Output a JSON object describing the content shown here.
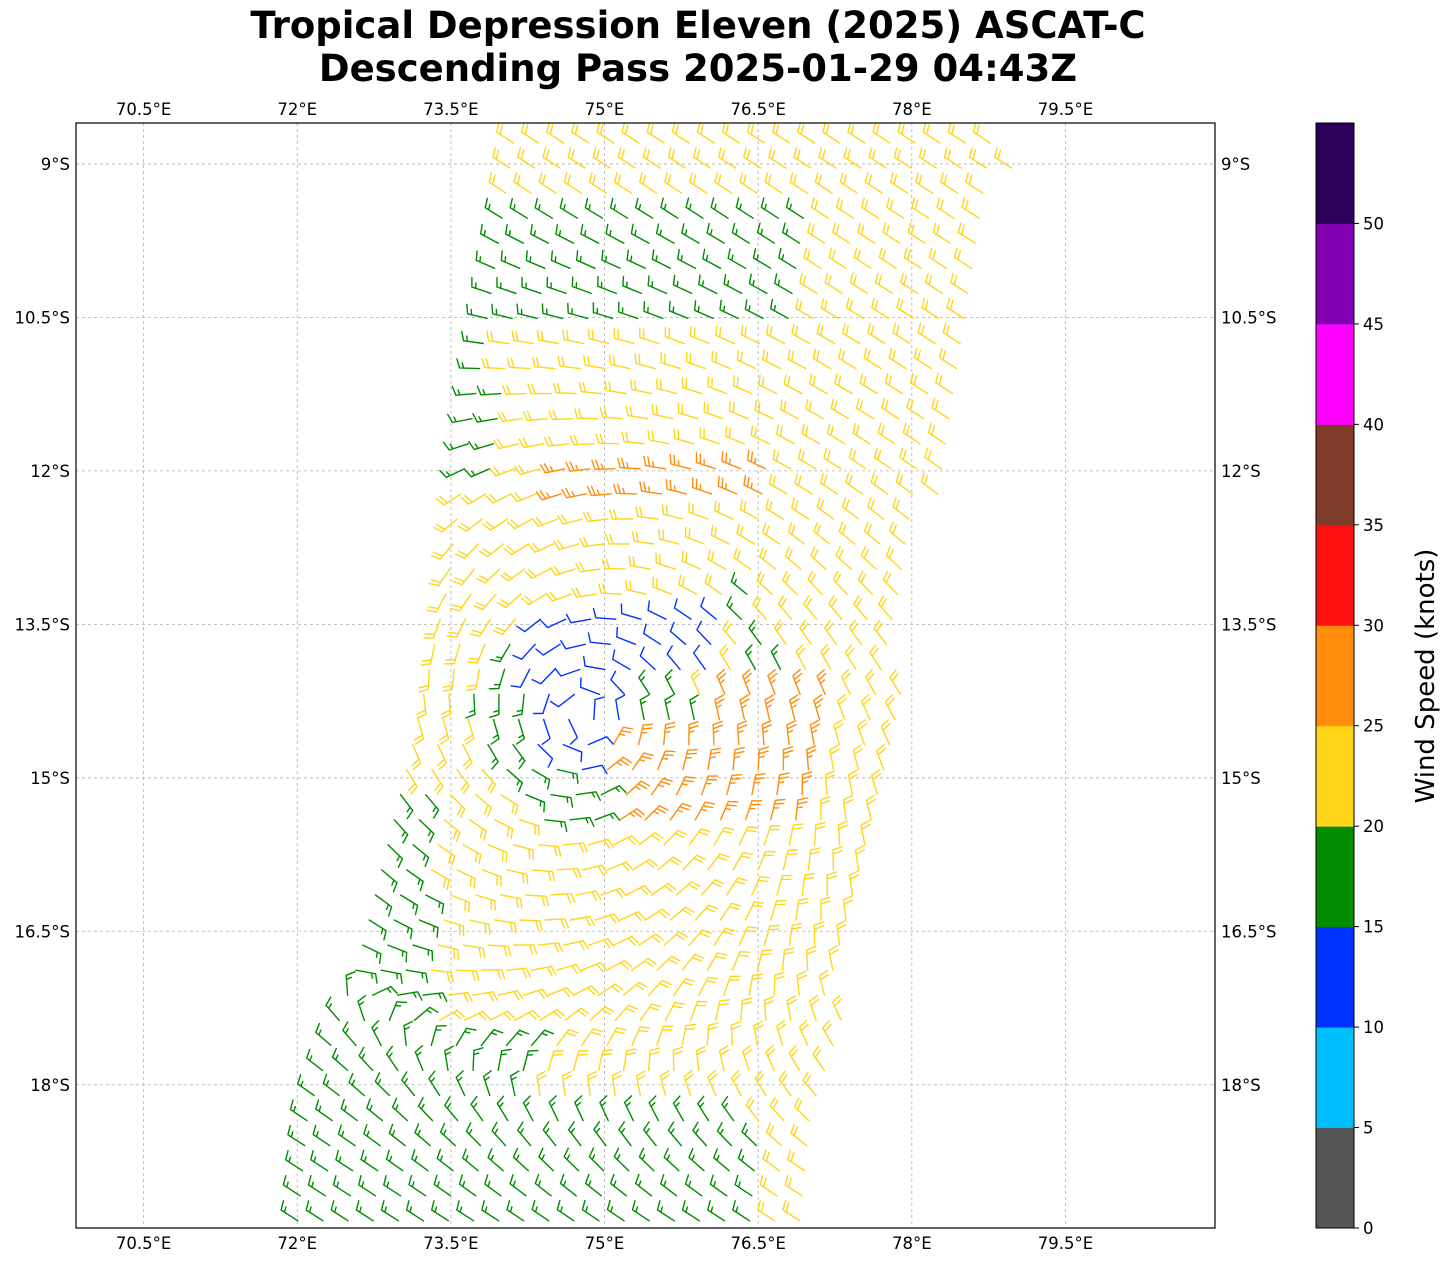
{
  "title": {
    "line1": "Tropical Depression Eleven (2025) ASCAT-C",
    "line2": "Descending Pass 2025-01-29 04:43Z"
  },
  "chart_data": {
    "type": "wind_barbs",
    "map_projection": "lon-lat",
    "xlim": [
      69.84,
      80.96
    ],
    "ylim": [
      -19.4,
      -8.6
    ],
    "x_ticks": [
      70.5,
      72,
      73.5,
      75,
      76.5,
      78,
      79.5
    ],
    "x_tick_labels": [
      "70.5°E",
      "72°E",
      "73.5°E",
      "75°E",
      "76.5°E",
      "78°E",
      "79.5°E"
    ],
    "y_ticks": [
      -9,
      -10.5,
      -12,
      -13.5,
      -15,
      -16.5,
      -18
    ],
    "y_tick_labels": [
      "9°S",
      "10.5°S",
      "12°S",
      "13.5°S",
      "15°S",
      "16.5°S",
      "18°S"
    ],
    "grid": true,
    "swath": {
      "left_edge": [
        [
          73.45,
          -13.2
        ],
        [
          73.1,
          -14.8
        ],
        [
          72.6,
          -16.8
        ],
        [
          72.1,
          -18.3
        ],
        [
          72.0,
          -19.4
        ]
      ],
      "right_edge": [
        [
          79.0,
          -9.0
        ],
        [
          78.5,
          -11.0
        ],
        [
          78.0,
          -13.5
        ],
        [
          77.6,
          -16.0
        ],
        [
          77.2,
          -18.0
        ],
        [
          77.1,
          -19.4
        ]
      ]
    },
    "circulation_center": {
      "lon": 74.8,
      "lat": -14.4
    },
    "colorbar": {
      "label": "Wind Speed (knots)",
      "bounds": [
        0,
        5,
        10,
        15,
        20,
        25,
        30,
        35,
        40,
        45,
        50,
        55
      ],
      "tick_labels": [
        "0",
        "5",
        "10",
        "15",
        "20",
        "25",
        "30",
        "35",
        "40",
        "45",
        "50"
      ],
      "colors": [
        "#555555",
        "#00bfff",
        "#0033ff",
        "#008c00",
        "#ffd51a",
        "#ff8c0a",
        "#ff1010",
        "#7f3c28",
        "#ff00ff",
        "#8000b2",
        "#2a005a"
      ]
    },
    "speed_regions_knots": [
      {
        "description": "northern swath",
        "approx_speed": 22
      },
      {
        "description": "ring around center",
        "approx_speed": 18
      },
      {
        "description": "inner core band",
        "approx_speed": 13
      },
      {
        "description": "northern band near 12.2S",
        "approx_speed": 26
      },
      {
        "description": "southern band near 15S",
        "approx_speed": 26
      },
      {
        "description": "southern swath",
        "approx_speed": 22
      },
      {
        "description": "far south",
        "approx_speed": 18
      }
    ]
  }
}
